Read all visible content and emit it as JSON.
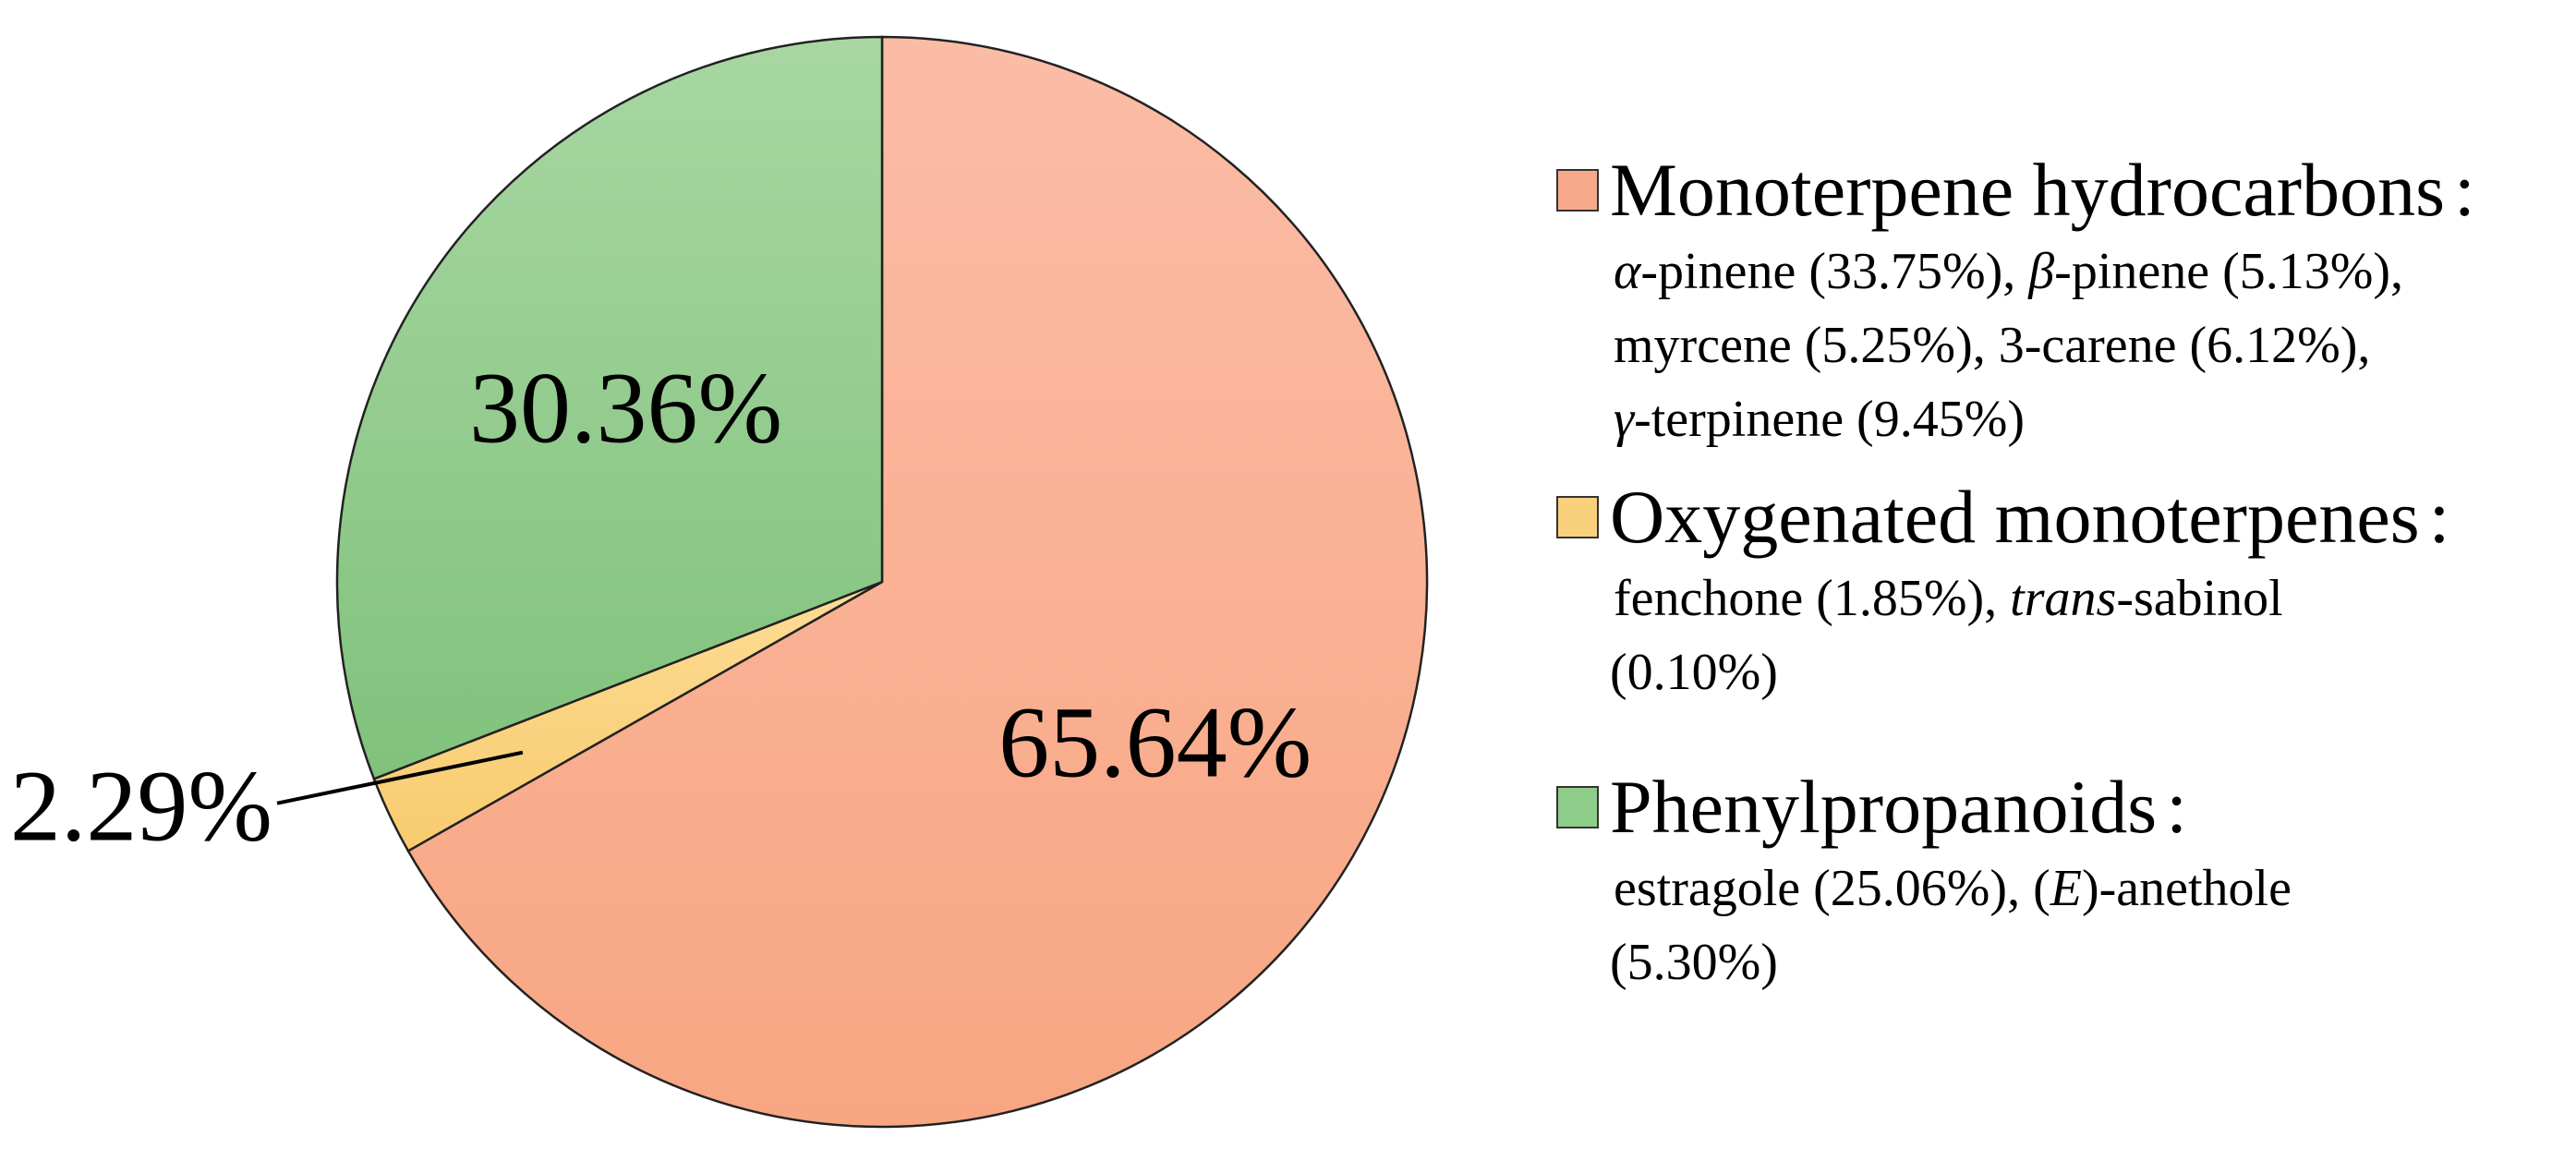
{
  "chart_data": {
    "type": "pie",
    "title": "",
    "start_angle_deg": 90,
    "direction": "clockwise",
    "slices": [
      {
        "name": "Monoterpene hydrocarbons",
        "value": 65.64,
        "label": "65.64%",
        "color": "#F8A98A"
      },
      {
        "name": "Oxygenated monoterpenes",
        "value": 2.29,
        "label": "2.29%",
        "color": "#F9D17C"
      },
      {
        "name": "Phenylpropanoids",
        "value": 30.36,
        "label": "30.36%",
        "color": "#8ECC8A"
      }
    ],
    "legend": {
      "position": "right",
      "entries": [
        {
          "name": "Monoterpene hydrocarbons",
          "separator": ":",
          "color": "#F8A98A",
          "detail_lines": [
            [
              {
                "t": "α",
                "i": true
              },
              {
                "t": "-pinene (33.75%), "
              },
              {
                "t": "β",
                "i": true
              },
              {
                "t": "-pinene (5.13%),"
              }
            ],
            [
              {
                "t": "myrcene (5.25%), 3-carene (6.12%),"
              }
            ],
            [
              {
                "t": "γ",
                "i": true
              },
              {
                "t": "-terpinene (9.45%)"
              }
            ]
          ]
        },
        {
          "name": "Oxygenated monoterpenes",
          "separator": ":",
          "color": "#F9D17C",
          "detail_lines": [
            [
              {
                "t": "fenchone (1.85%), "
              },
              {
                "t": "trans",
                "i": true
              },
              {
                "t": "-sabinol"
              }
            ],
            [
              {
                "t": "(0.10%)"
              }
            ]
          ]
        },
        {
          "name": "Phenylpropanoids",
          "separator": ":",
          "color": "#8ECC8A",
          "detail_lines": [
            [
              {
                "t": "estragole (25.06%), ("
              },
              {
                "t": "E",
                "i": true
              },
              {
                "t": ")-anethole"
              }
            ],
            [
              {
                "t": "(5.30%)"
              }
            ]
          ]
        }
      ]
    }
  }
}
